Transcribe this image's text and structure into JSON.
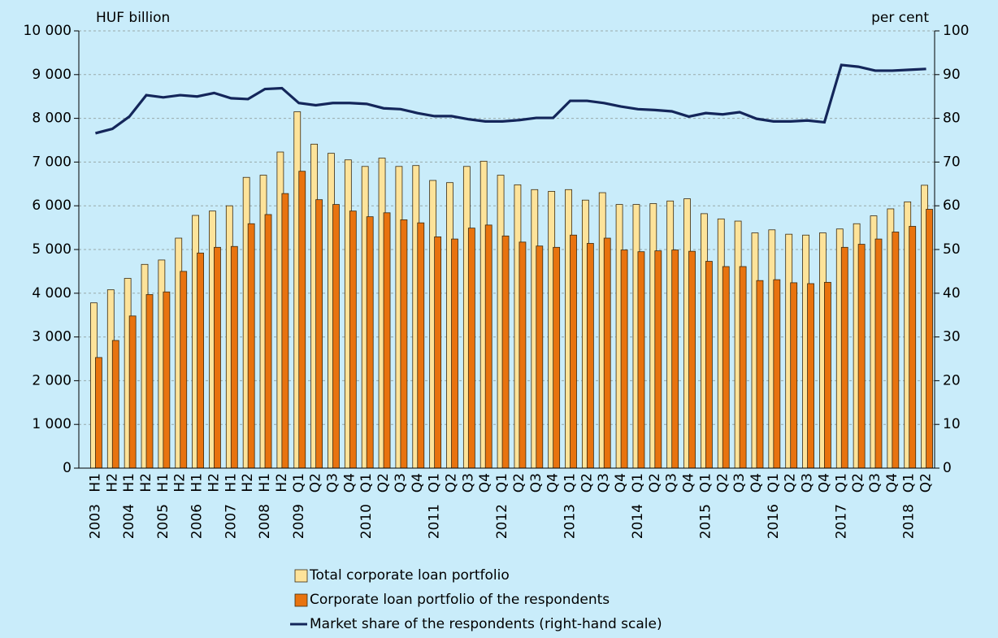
{
  "chart_data": {
    "type": "bar",
    "y_label": "HUF billion",
    "y2_label": "per cent",
    "categories": [
      "H1",
      "H2",
      "H1",
      "H2",
      "H1",
      "H2",
      "H1",
      "H2",
      "H1",
      "H2",
      "H1",
      "H2",
      "Q1",
      "Q2",
      "Q3",
      "Q4",
      "Q1",
      "Q2",
      "Q3",
      "Q4",
      "Q1",
      "Q2",
      "Q3",
      "Q4",
      "Q1",
      "Q2",
      "Q3",
      "Q4",
      "Q1",
      "Q2",
      "Q3",
      "Q4",
      "Q1",
      "Q2",
      "Q3",
      "Q4",
      "Q1",
      "Q2",
      "Q3",
      "Q4",
      "Q1",
      "Q2",
      "Q3",
      "Q4",
      "Q1",
      "Q2",
      "Q3",
      "Q4",
      "Q1",
      "Q2"
    ],
    "years": [
      "2003",
      null,
      "2004",
      null,
      "2005",
      null,
      "2006",
      null,
      "2007",
      null,
      "2008",
      null,
      "2009",
      null,
      null,
      null,
      "2010",
      null,
      null,
      null,
      "2011",
      null,
      null,
      null,
      "2012",
      null,
      null,
      null,
      "2013",
      null,
      null,
      null,
      "2014",
      null,
      null,
      null,
      "2015",
      null,
      null,
      null,
      "2016",
      null,
      null,
      null,
      "2017",
      null,
      null,
      null,
      "2018",
      null
    ],
    "series": [
      {
        "name": "Total corporate loan portfolio",
        "color": "#fde39a",
        "values": [
          3780,
          4080,
          4340,
          4660,
          4760,
          5260,
          5780,
          5880,
          6000,
          6650,
          6700,
          7230,
          8150,
          7410,
          7200,
          7050,
          6900,
          7090,
          6900,
          6920,
          6580,
          6530,
          6900,
          7020,
          6700,
          6480,
          6370,
          6330,
          6370,
          6130,
          6300,
          6030,
          6030,
          6050,
          6110,
          6160,
          5820,
          5700,
          5650,
          5380,
          5450,
          5350,
          5330,
          5380,
          5470,
          5590,
          5770,
          5930,
          6090,
          6470
        ]
      },
      {
        "name": "Corporate loan portfolio of the respondents",
        "color": "#e8730f",
        "values": [
          2530,
          2920,
          3480,
          3970,
          4030,
          4500,
          4920,
          5050,
          5070,
          5590,
          5800,
          6280,
          6790,
          6140,
          6030,
          5880,
          5750,
          5840,
          5680,
          5610,
          5290,
          5240,
          5490,
          5560,
          5310,
          5170,
          5080,
          5050,
          5330,
          5140,
          5260,
          4990,
          4950,
          4970,
          4990,
          4960,
          4730,
          4610,
          4610,
          4290,
          4310,
          4240,
          4220,
          4250,
          5050,
          5120,
          5240,
          5400,
          5530,
          5920
        ]
      },
      {
        "name": "Market share of the respondents (right-hand scale)",
        "type": "line",
        "axis": "y2",
        "color": "#14265a",
        "values": [
          76.6,
          77.6,
          80.4,
          85.3,
          84.8,
          85.3,
          85.0,
          85.8,
          84.6,
          84.4,
          86.7,
          86.9,
          83.5,
          83.0,
          83.5,
          83.5,
          83.3,
          82.3,
          82.1,
          81.2,
          80.5,
          80.5,
          79.8,
          79.3,
          79.3,
          79.6,
          80.1,
          80.1,
          84.0,
          84.0,
          83.5,
          82.7,
          82.1,
          81.9,
          81.6,
          80.4,
          81.2,
          80.9,
          81.4,
          79.9,
          79.3,
          79.3,
          79.5,
          79.1,
          92.2,
          91.8,
          90.9,
          90.9,
          91.1,
          91.3
        ]
      }
    ],
    "ylim": [
      0,
      10000
    ],
    "yticks": [
      0,
      {
        "value": 1000,
        "label": "1 000"
      },
      {
        "value": 2000,
        "label": "2 000"
      },
      {
        "value": 3000,
        "label": "3 000"
      },
      {
        "value": 4000,
        "label": "4 000"
      },
      {
        "value": 5000,
        "label": "5 000"
      },
      {
        "value": 6000,
        "label": "6 000"
      },
      {
        "value": 7000,
        "label": "7 000"
      },
      {
        "value": 8000,
        "label": "8 000"
      },
      {
        "value": 9000,
        "label": "9 000"
      },
      {
        "value": 10000,
        "label": "10 000"
      }
    ],
    "y2lim": [
      0,
      100
    ],
    "y2ticks": [
      0,
      10,
      20,
      30,
      40,
      50,
      60,
      70,
      80,
      90,
      100
    ],
    "grid": true,
    "legend": "bottom"
  }
}
